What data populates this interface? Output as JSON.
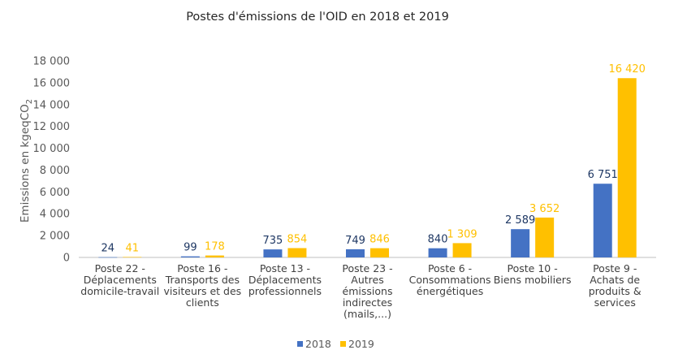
{
  "colors": {
    "s2018": "#4472C4",
    "s2019": "#FFC000",
    "grid": "#D9D9D9",
    "axis": "#BFBFBF"
  },
  "chart_data": {
    "type": "bar",
    "title": "Postes d'émissions de l'OID en 2018 et 2019",
    "xlabel": "",
    "ylabel": "Emissions en kgeqCO",
    "ylabel_sub": "2",
    "ylim": [
      0,
      18000
    ],
    "yticks": [
      0,
      2000,
      4000,
      6000,
      8000,
      10000,
      12000,
      14000,
      16000,
      18000
    ],
    "ytick_labels": [
      "0",
      "2 000",
      "4 000",
      "6 000",
      "8 000",
      "10 000",
      "12 000",
      "14 000",
      "16 000",
      "18 000"
    ],
    "grid": false,
    "legend_position": "bottom",
    "categories": [
      [
        "Poste 22 -",
        "Déplacements",
        "domicile-travail"
      ],
      [
        "Poste 16 -",
        "Transports des",
        "visiteurs et des",
        "clients"
      ],
      [
        "Poste 13 -",
        "Déplacements",
        "professionnels"
      ],
      [
        "Poste 23 -",
        "Autres",
        "émissions",
        "indirectes",
        "(mails,...)"
      ],
      [
        "Poste 6 -",
        "Consommations",
        "énergétiques"
      ],
      [
        "Poste 10 -",
        "Biens mobiliers"
      ],
      [
        "Poste 9 -",
        "Achats de",
        "produits &",
        "services"
      ]
    ],
    "series": [
      {
        "name": "2018",
        "values": [
          24,
          99,
          735,
          749,
          840,
          2589,
          6751
        ],
        "labels": [
          "24",
          "99",
          "735",
          "749",
          "840",
          "2 589",
          "6 751"
        ]
      },
      {
        "name": "2019",
        "values": [
          41,
          178,
          854,
          846,
          1309,
          3652,
          16420
        ],
        "labels": [
          "41",
          "178",
          "854",
          "846",
          "1 309",
          "3 652",
          "16 420"
        ]
      }
    ]
  }
}
